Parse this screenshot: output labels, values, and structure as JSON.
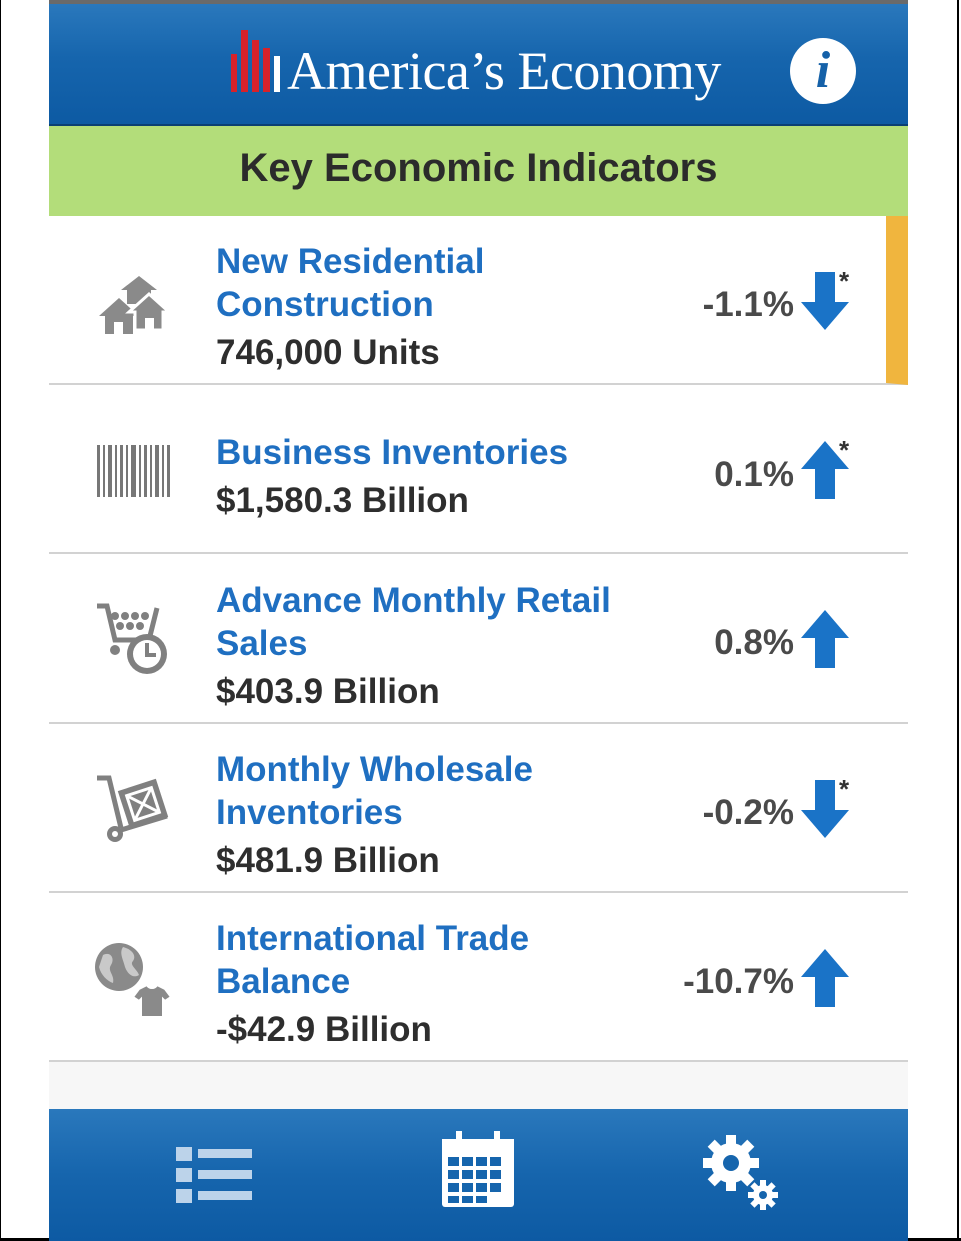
{
  "app": {
    "title": "America’s Economy",
    "info_label": "i"
  },
  "section": {
    "title": "Key Economic Indicators"
  },
  "indicators": [
    {
      "name_line1": "New Residential",
      "name_line2": "Construction",
      "value": "746,000 Units",
      "change": "-1.1%",
      "direction": "down",
      "asterisk": "*",
      "icon": "houses-icon",
      "selected": true
    },
    {
      "name_line1": "Business Inventories",
      "name_line2": "",
      "value": "$1,580.3 Billion",
      "change": "0.1%",
      "direction": "up",
      "asterisk": "*",
      "icon": "barcode-icon",
      "selected": false
    },
    {
      "name_line1": "Advance Monthly Retail",
      "name_line2": "Sales",
      "value": "$403.9 Billion",
      "change": "0.8%",
      "direction": "up",
      "asterisk": "",
      "icon": "shopping-cart-clock-icon",
      "selected": false
    },
    {
      "name_line1": "Monthly Wholesale",
      "name_line2": "Inventories",
      "value": "$481.9 Billion",
      "change": "-0.2%",
      "direction": "down",
      "asterisk": "*",
      "icon": "hand-truck-icon",
      "selected": false
    },
    {
      "name_line1": "International Trade",
      "name_line2": "Balance",
      "value": "-$42.9 Billion",
      "change": "-10.7%",
      "direction": "up",
      "asterisk": "",
      "icon": "globe-shirt-icon",
      "selected": false
    }
  ],
  "tabs": [
    {
      "icon": "list-icon"
    },
    {
      "icon": "calendar-icon"
    },
    {
      "icon": "settings-gears-icon"
    }
  ],
  "colors": {
    "header_blue": "#1665ad",
    "section_green": "#b3dd7a",
    "link_blue": "#1f6fc1",
    "arrow_blue": "#1a73c7",
    "selection_orange": "#f0b53e",
    "logo_red": "#d7222a"
  }
}
